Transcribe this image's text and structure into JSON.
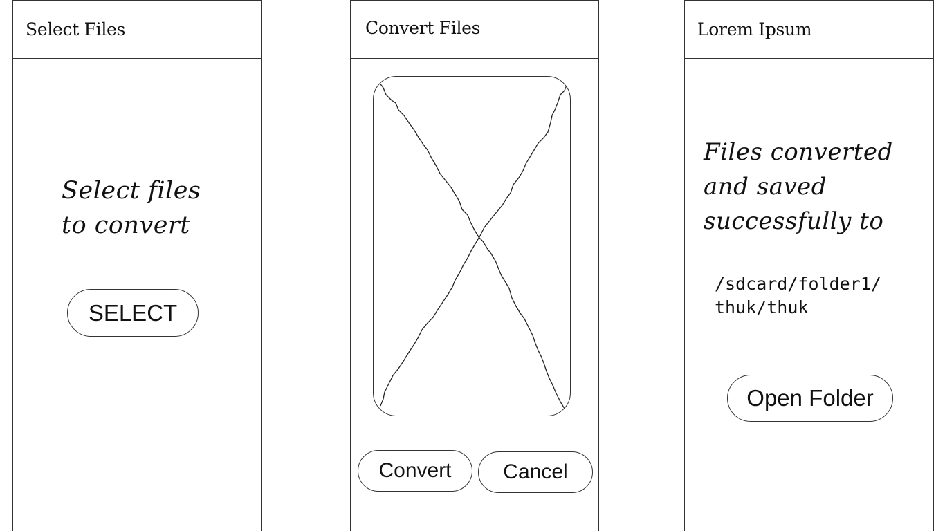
{
  "screens": {
    "select": {
      "title": "Select Files",
      "message_line1": "Select files",
      "message_line2": "to convert",
      "select_button": "SELECT"
    },
    "convert": {
      "title": "Convert Files",
      "image_placeholder": "image-placeholder-icon",
      "convert_button": "Convert",
      "cancel_button": "Cancel"
    },
    "result": {
      "title": "Lorem Ipsum",
      "message_line1": "Files converted",
      "message_line2": "and saved",
      "message_line3": "successfully to",
      "path_line1": "/sdcard/folder1/",
      "path_line2": "thuk/thuk",
      "open_folder_button": "Open Folder"
    }
  },
  "colors": {
    "stroke": "#333333",
    "text": "#111111",
    "background": "#ffffff"
  }
}
